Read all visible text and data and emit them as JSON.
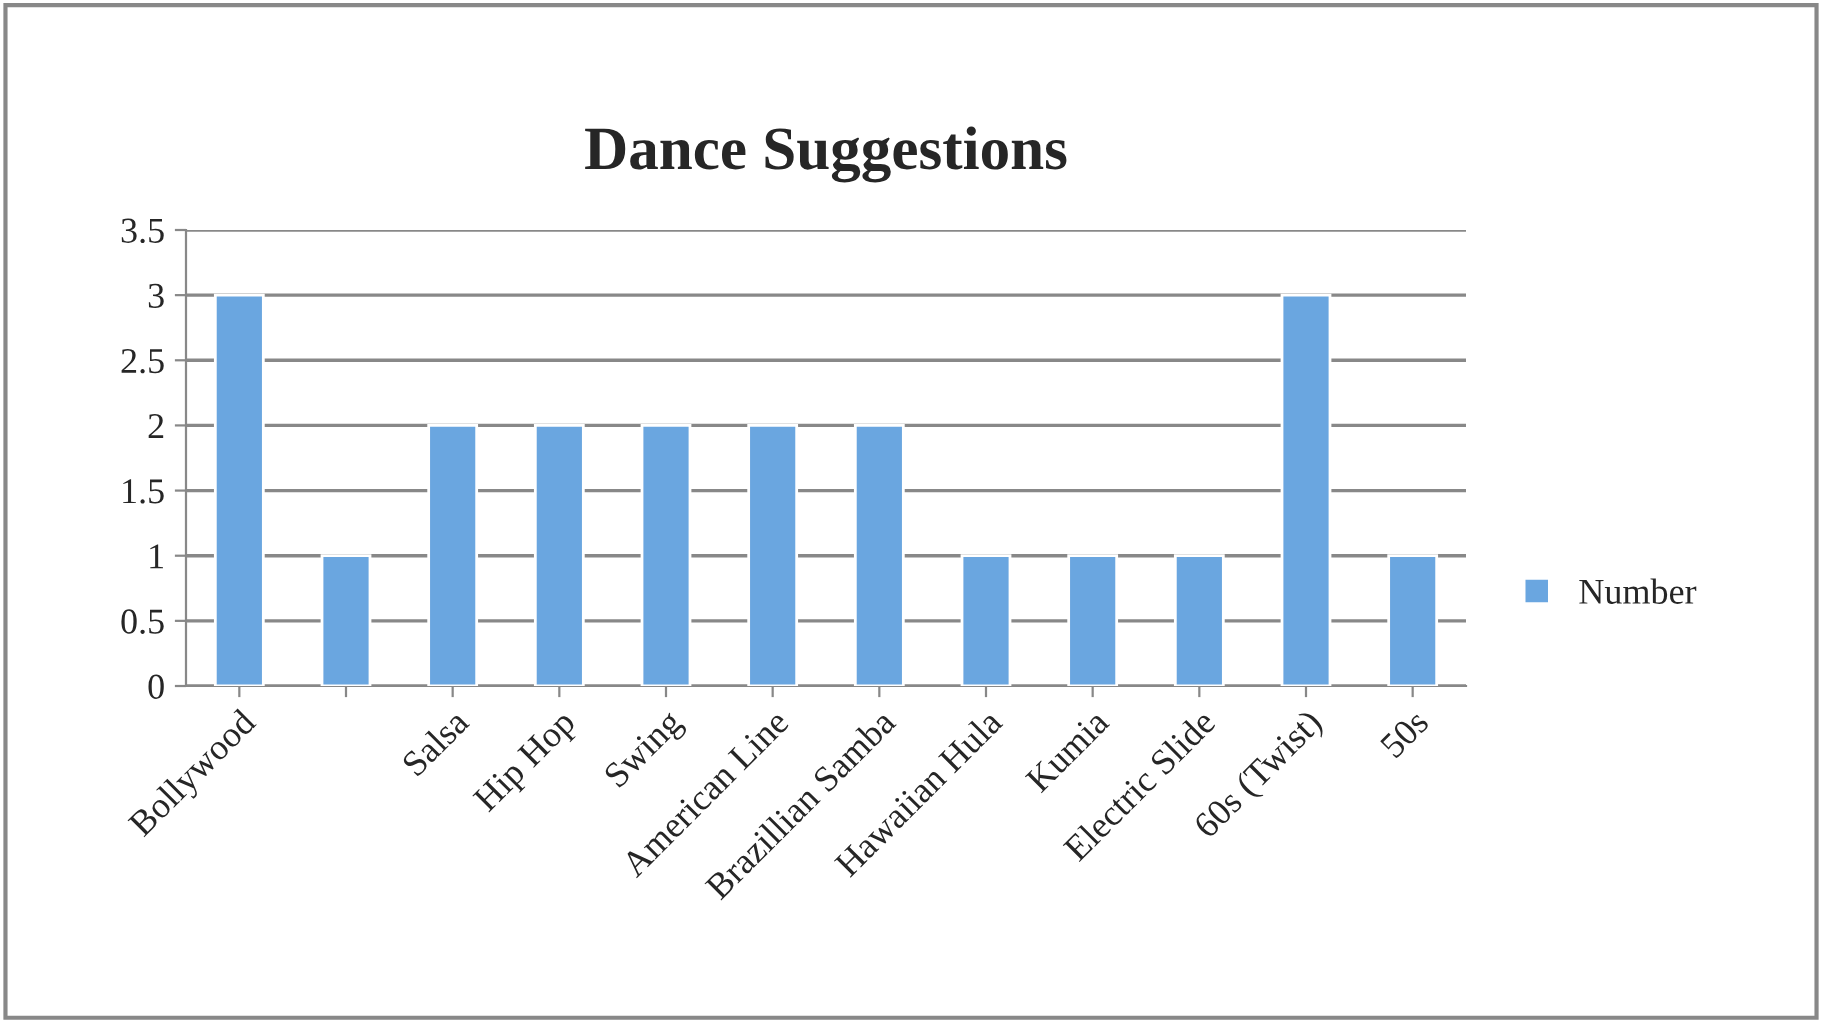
{
  "chart_data": {
    "type": "bar",
    "title": "Dance Suggestions",
    "categories": [
      "Bollywood",
      null,
      "Salsa",
      "Hip Hop",
      "Swing",
      "American Line",
      "Brazillian Samba",
      "Hawaiian Hula",
      "Kumia",
      "Electric Slide",
      "60s (Twist)",
      "50s"
    ],
    "series": [
      {
        "name": "Number",
        "color": "#6aa6e0",
        "values": [
          3,
          1,
          2,
          2,
          2,
          2,
          2,
          1,
          1,
          1,
          3,
          1
        ]
      }
    ],
    "ylim": [
      0,
      3.5
    ],
    "yticks": [
      0,
      0.5,
      1,
      1.5,
      2,
      2.5,
      3,
      3.5
    ],
    "grid": "y",
    "legend": "right"
  }
}
